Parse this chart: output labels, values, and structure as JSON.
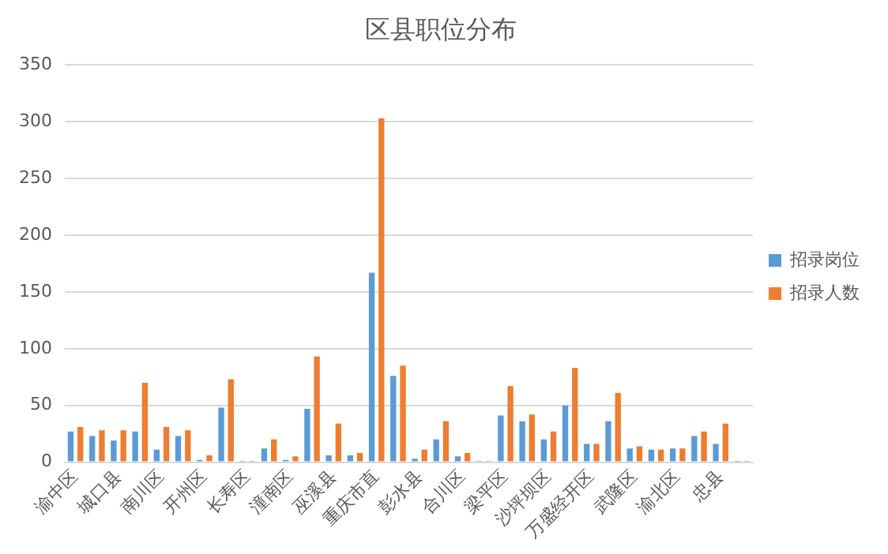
{
  "chart_data": {
    "type": "bar",
    "title": "区县职位分布",
    "categories": [
      "渝中区",
      null,
      "城口县",
      null,
      "南川区",
      null,
      "开州区",
      null,
      "长寿区",
      null,
      "潼南区",
      null,
      "巫溪县",
      null,
      "重庆市直",
      null,
      "彭水县",
      null,
      "合川区",
      null,
      "梁平区",
      null,
      "沙坪坝区",
      null,
      "万盛经开区",
      null,
      "武隆区",
      null,
      "渝北区",
      null,
      "忠县",
      null
    ],
    "series": [
      {
        "name": "招录岗位",
        "color": "#5b9bd5",
        "values": [
          27,
          23,
          19,
          27,
          11,
          23,
          2,
          48,
          1,
          12,
          2,
          47,
          6,
          6,
          167,
          76,
          3,
          20,
          5,
          1,
          41,
          36,
          20,
          50,
          16,
          36,
          12,
          11,
          12,
          23,
          16,
          1
        ]
      },
      {
        "name": "招录人数",
        "color": "#ed7d31",
        "values": [
          31,
          28,
          28,
          70,
          31,
          28,
          6,
          73,
          1,
          20,
          5,
          93,
          34,
          8,
          303,
          85,
          11,
          36,
          8,
          1,
          67,
          42,
          27,
          83,
          16,
          61,
          14,
          11,
          12,
          27,
          34,
          1
        ]
      }
    ],
    "ylim": [
      0,
      350
    ],
    "yticks": [
      0,
      50,
      100,
      150,
      200,
      250,
      300,
      350
    ],
    "grid": "y",
    "legend": "right"
  }
}
